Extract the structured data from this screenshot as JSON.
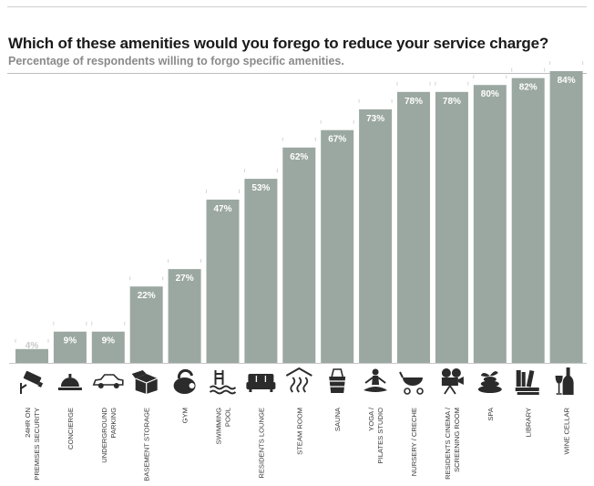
{
  "header": {
    "title": "Which of these amenities would you forego to reduce your service charge?",
    "subtitle": "Percentage of respondents willing to forgo specific amenities."
  },
  "colors": {
    "bar": "#9ba8a1",
    "label_on_bar": "#ffffff",
    "label_small_bar": "#c8c8c8",
    "icon": "#2b2b2b",
    "category_text": "#3a3a3a"
  },
  "chart_data": {
    "type": "bar",
    "title": "Which of these amenities would you forego to reduce your service charge?",
    "subtitle": "Percentage of respondents willing to forgo specific amenities.",
    "ylim": [
      0,
      100
    ],
    "grid": false,
    "legend": "none",
    "categories": [
      "24HR ON PREMISES SECURITY",
      "CONCIERGE",
      "UNDERGROUND PARKING",
      "BASEMENT STORAGE",
      "GYM",
      "SWIMMING POOL",
      "RESIDENTS LOUNGE",
      "STEAM ROOM",
      "SAUNA",
      "YOGA / PILATES STUDIO",
      "NURSERY / CRECHE",
      "RESIDENTS CINEMA / SCREENING ROOM",
      "SPA",
      "LIBRARY",
      "WINE CELLAR"
    ],
    "category_lines": [
      [
        "24HR ON",
        "PREMISES SECURITY"
      ],
      [
        "CONCIERGE"
      ],
      [
        "UNDERGROUND",
        "PARKING"
      ],
      [
        "BASEMENT STORAGE"
      ],
      [
        "GYM"
      ],
      [
        "SWIMMING",
        "POOL"
      ],
      [
        "RESIDENTS LOUNGE"
      ],
      [
        "STEAM ROOM"
      ],
      [
        "SAUNA"
      ],
      [
        "YOGA /",
        "PILATES STUDIO"
      ],
      [
        "NURSERY / CRECHE"
      ],
      [
        "RESIDENTS CINEMA /",
        "SCREENING ROOM"
      ],
      [
        "SPA"
      ],
      [
        "LIBRARY"
      ],
      [
        "WINE CELLAR"
      ]
    ],
    "values": [
      4,
      9,
      9,
      22,
      27,
      47,
      53,
      62,
      67,
      73,
      78,
      78,
      80,
      82,
      84
    ],
    "labels": [
      "4%",
      "9%",
      "9%",
      "22%",
      "27%",
      "47%",
      "53%",
      "62%",
      "67%",
      "73%",
      "78%",
      "78%",
      "80%",
      "82%",
      "84%"
    ],
    "icons": [
      "security-camera-icon",
      "concierge-bell-icon",
      "car-icon",
      "storage-box-icon",
      "kettlebell-icon",
      "swimming-pool-icon",
      "sofa-icon",
      "steam-icon",
      "sauna-bucket-icon",
      "yoga-pose-icon",
      "pram-icon",
      "film-camera-icon",
      "spa-stones-icon",
      "books-icon",
      "wine-bottle-icon"
    ]
  }
}
